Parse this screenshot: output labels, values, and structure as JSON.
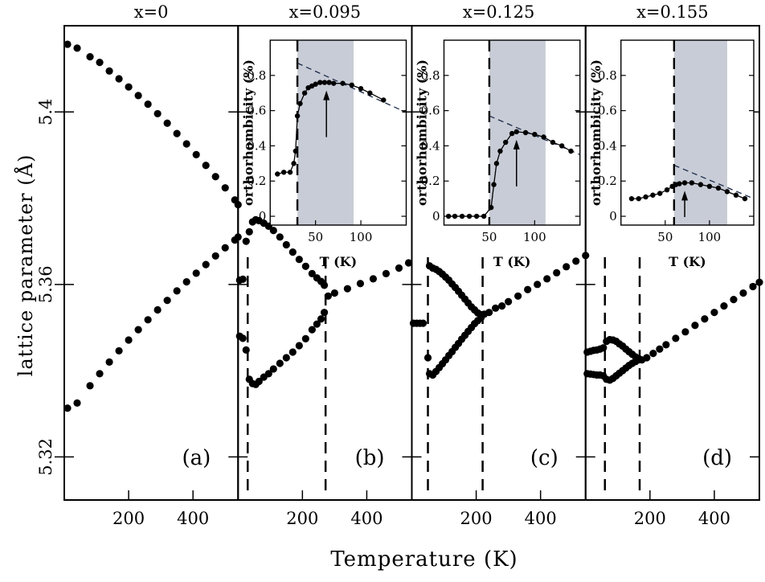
{
  "figure": {
    "ylabel": "lattice parameter (Å)",
    "xlabel": "Temperature (K)"
  },
  "chart_data": [
    {
      "type": "scatter",
      "panel_label": "(a)",
      "title": "x=0",
      "xlim": [
        0,
        540
      ],
      "ylim": [
        5.31,
        5.42
      ],
      "yticks": [
        5.32,
        5.36,
        5.4
      ],
      "ytick_labels": [
        "5.32",
        "5.36",
        "5.4"
      ],
      "xticks": [
        200,
        400
      ],
      "xtick_labels": [
        "200",
        "400"
      ],
      "vlines": [],
      "series": [
        {
          "x": [
            10,
            40,
            80,
            110,
            140,
            170,
            200,
            230,
            260,
            290,
            320,
            350,
            380,
            410,
            440,
            470,
            500,
            530,
            540
          ],
          "y": [
            5.4157,
            5.4148,
            5.4128,
            5.4115,
            5.4095,
            5.4077,
            5.4058,
            5.4038,
            5.4018,
            5.3996,
            5.3974,
            5.395,
            5.3926,
            5.3901,
            5.3876,
            5.385,
            5.3824,
            5.3796,
            5.3785
          ]
        },
        {
          "x": [
            10,
            40,
            80,
            110,
            140,
            170,
            200,
            230,
            260,
            290,
            320,
            350,
            380,
            410,
            440,
            470,
            500,
            530,
            540
          ],
          "y": [
            5.3313,
            5.3325,
            5.3365,
            5.3393,
            5.342,
            5.3446,
            5.3471,
            5.3495,
            5.3518,
            5.3541,
            5.3563,
            5.3585,
            5.3606,
            5.3626,
            5.3646,
            5.3666,
            5.3685,
            5.3703,
            5.371
          ]
        }
      ]
    },
    {
      "type": "scatter",
      "panel_label": "(b)",
      "title": "x=0.095",
      "xlim": [
        0,
        540
      ],
      "ylim": [
        5.31,
        5.42
      ],
      "yticks": [
        5.32,
        5.36,
        5.4
      ],
      "xticks": [
        200,
        400
      ],
      "xtick_labels": [
        "200",
        "400"
      ],
      "vlines": [
        30,
        272
      ],
      "series": [
        {
          "x": [
            5,
            15,
            25,
            35,
            45,
            55,
            65,
            80,
            95,
            110,
            130,
            150,
            170,
            190,
            210,
            230,
            245,
            258,
            268
          ],
          "y": [
            5.361,
            5.3612,
            5.37,
            5.3722,
            5.3745,
            5.375,
            5.3748,
            5.3742,
            5.3735,
            5.3725,
            5.371,
            5.3692,
            5.3675,
            5.3658,
            5.3642,
            5.3625,
            5.3615,
            5.3607,
            5.3598
          ]
        },
        {
          "x": [
            5,
            15,
            25,
            35,
            45,
            55,
            65,
            80,
            95,
            110,
            130,
            150,
            170,
            190,
            210,
            230,
            245,
            258,
            268
          ],
          "y": [
            5.348,
            5.3475,
            5.3448,
            5.338,
            5.337,
            5.3368,
            5.3375,
            5.3385,
            5.3393,
            5.3404,
            5.3417,
            5.343,
            5.3443,
            5.3458,
            5.3474,
            5.3495,
            5.3508,
            5.352,
            5.3535
          ]
        },
        {
          "x": [
            280,
            300,
            340,
            380,
            420,
            460,
            500,
            530
          ],
          "y": [
            5.3573,
            5.358,
            5.359,
            5.3602,
            5.3613,
            5.3625,
            5.3638,
            5.365
          ]
        }
      ],
      "inset": {
        "xlabel": "T (K)",
        "ylabel": "orthorhombicity (%)",
        "xlim": [
          0,
          150
        ],
        "ylim": [
          -0.05,
          1.0
        ],
        "xticks": [
          50,
          100
        ],
        "xtick_labels": [
          "50",
          "100"
        ],
        "yticks": [
          0,
          0.2,
          0.4,
          0.6,
          0.8
        ],
        "ytick_labels": [
          "0",
          "0.2",
          "0.4",
          "0.6",
          "0.8"
        ],
        "shade": [
          30,
          92
        ],
        "vline": 30,
        "arrow_x": 62,
        "dashed_fit": [
          [
            30,
            0.87
          ],
          [
            150,
            0.59
          ]
        ],
        "x": [
          8,
          15,
          22,
          26,
          28,
          30,
          33,
          38,
          42,
          46,
          50,
          55,
          60,
          65,
          70,
          80,
          90,
          100,
          110,
          125
        ],
        "y": [
          0.24,
          0.25,
          0.25,
          0.3,
          0.37,
          0.57,
          0.64,
          0.7,
          0.73,
          0.74,
          0.75,
          0.76,
          0.76,
          0.76,
          0.755,
          0.755,
          0.745,
          0.725,
          0.7,
          0.66
        ]
      }
    },
    {
      "type": "scatter",
      "panel_label": "(c)",
      "title": "x=0.125",
      "xlim": [
        0,
        540
      ],
      "ylim": [
        5.31,
        5.42
      ],
      "yticks": [
        5.32,
        5.36,
        5.4
      ],
      "xticks": [
        200,
        400
      ],
      "xtick_labels": [
        "200",
        "400"
      ],
      "vlines": [
        50,
        220
      ],
      "series": [
        {
          "x": [
            5,
            15,
            25,
            35
          ],
          "y": [
            5.351,
            5.351,
            5.351,
            5.351
          ]
        },
        {
          "x": [
            55,
            65,
            75,
            85,
            95,
            105,
            115,
            125,
            135,
            145,
            155,
            165,
            175,
            185,
            195,
            205,
            215
          ],
          "y": [
            5.3643,
            5.3638,
            5.3635,
            5.363,
            5.3624,
            5.3617,
            5.361,
            5.3601,
            5.3593,
            5.3584,
            5.3575,
            5.3566,
            5.3557,
            5.3548,
            5.3541,
            5.3534,
            5.353
          ]
        },
        {
          "x": [
            50,
            55,
            65,
            75,
            85,
            95,
            105,
            115,
            125,
            135,
            145,
            155,
            165,
            175,
            185,
            195,
            205,
            215
          ],
          "y": [
            5.343,
            5.3393,
            5.339,
            5.3398,
            5.3407,
            5.3416,
            5.3425,
            5.3435,
            5.3444,
            5.3454,
            5.3463,
            5.3473,
            5.3482,
            5.3491,
            5.35,
            5.3509,
            5.3516,
            5.3523
          ]
        },
        {
          "x": [
            225,
            240,
            260,
            280,
            300,
            330,
            360,
            390,
            420,
            450,
            480,
            510,
            540
          ],
          "y": [
            5.3531,
            5.3535,
            5.3545,
            5.355,
            5.356,
            5.3573,
            5.3588,
            5.36,
            5.3613,
            5.3627,
            5.3641,
            5.3654,
            5.3667
          ]
        }
      ],
      "inset": {
        "xlabel": "T (K)",
        "ylabel": "orthorhombicity (%)",
        "xlim": [
          0,
          150
        ],
        "ylim": [
          -0.05,
          1.0
        ],
        "xticks": [
          50,
          100
        ],
        "xtick_labels": [
          "50",
          "100"
        ],
        "yticks": [
          0,
          0.2,
          0.4,
          0.6,
          0.8
        ],
        "ytick_labels": [
          "0",
          "0.2",
          "0.4",
          "0.6",
          "0.8"
        ],
        "shade": [
          50,
          112
        ],
        "vline": 50,
        "arrow_x": 80,
        "dashed_fit": [
          [
            50,
            0.57
          ],
          [
            150,
            0.35
          ]
        ],
        "x": [
          5,
          12,
          20,
          28,
          36,
          44,
          52,
          55,
          58,
          62,
          68,
          75,
          80,
          90,
          100,
          110,
          120,
          130,
          140
        ],
        "y": [
          0,
          0,
          0,
          0,
          0,
          0,
          0.05,
          0.18,
          0.3,
          0.37,
          0.42,
          0.47,
          0.48,
          0.475,
          0.465,
          0.45,
          0.42,
          0.4,
          0.37
        ]
      }
    },
    {
      "type": "scatter",
      "panel_label": "(d)",
      "title": "x=0.155",
      "xlim": [
        0,
        540
      ],
      "ylim": [
        5.31,
        5.42
      ],
      "yticks": [
        5.32,
        5.36,
        5.4
      ],
      "xticks": [
        200,
        400
      ],
      "xtick_labels": [
        "200",
        "400"
      ],
      "vlines": [
        60,
        168
      ],
      "series": [
        {
          "x": [
            5,
            15,
            25,
            35,
            45,
            55
          ],
          "y": [
            5.3443,
            5.3445,
            5.3447,
            5.3448,
            5.345,
            5.3453
          ]
        },
        {
          "x": [
            5,
            15,
            25,
            35,
            45,
            55
          ],
          "y": [
            5.3393,
            5.3392,
            5.3391,
            5.339,
            5.339,
            5.3388
          ]
        },
        {
          "x": [
            65,
            75,
            85,
            95,
            105,
            115,
            125,
            135,
            145,
            155,
            165
          ],
          "y": [
            5.3468,
            5.3472,
            5.3471,
            5.3468,
            5.3462,
            5.3457,
            5.345,
            5.3444,
            5.3438,
            5.3432,
            5.3428
          ]
        },
        {
          "x": [
            65,
            75,
            85,
            95,
            105,
            115,
            125,
            135,
            145,
            155,
            165
          ],
          "y": [
            5.338,
            5.3378,
            5.3382,
            5.3388,
            5.3394,
            5.34,
            5.3406,
            5.3412,
            5.3417,
            5.3421,
            5.3425
          ]
        },
        {
          "x": [
            175,
            190,
            210,
            230,
            250,
            280,
            310,
            340,
            370,
            400,
            430,
            460,
            490,
            520,
            540
          ],
          "y": [
            5.3425,
            5.343,
            5.344,
            5.345,
            5.346,
            5.3475,
            5.349,
            5.3505,
            5.352,
            5.3535,
            5.355,
            5.3565,
            5.358,
            5.3595,
            5.3605
          ]
        }
      ],
      "inset": {
        "xlabel": "T (K)",
        "ylabel": "orthorhombicity (%)",
        "xlim": [
          0,
          150
        ],
        "ylim": [
          -0.05,
          1.0
        ],
        "xticks": [
          50,
          100
        ],
        "xtick_labels": [
          "50",
          "100"
        ],
        "yticks": [
          0,
          0.2,
          0.4,
          0.6,
          0.8
        ],
        "ytick_labels": [
          "0",
          "0.2",
          "0.4",
          "0.6",
          "0.8"
        ],
        "shade": [
          60,
          120
        ],
        "vline": 60,
        "arrow_x": 72,
        "dashed_fit": [
          [
            60,
            0.29
          ],
          [
            150,
            0.1
          ]
        ],
        "x": [
          12,
          20,
          28,
          36,
          44,
          52,
          58,
          62,
          66,
          72,
          80,
          90,
          100,
          110,
          120,
          130,
          140
        ],
        "y": [
          0.1,
          0.1,
          0.11,
          0.12,
          0.13,
          0.15,
          0.17,
          0.18,
          0.185,
          0.19,
          0.19,
          0.18,
          0.17,
          0.16,
          0.14,
          0.12,
          0.1
        ]
      }
    }
  ]
}
